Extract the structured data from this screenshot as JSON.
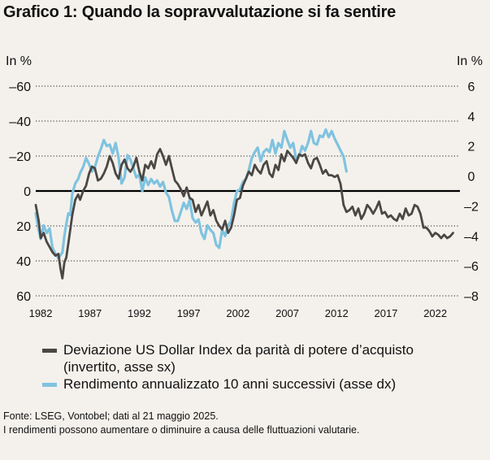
{
  "title": "Grafico 1: Quando la sopravvalutazione si fa sentire",
  "chart_data": {
    "type": "line",
    "left_axis": {
      "unit_label": "In %",
      "ticks": [
        -60,
        -40,
        -20,
        0,
        20,
        40,
        60
      ],
      "tick_labels": [
        "–60",
        "–40",
        "–20",
        "0",
        "20",
        "40",
        "60"
      ],
      "range": [
        60,
        -60
      ],
      "inverted": true
    },
    "right_axis": {
      "unit_label": "In %",
      "ticks": [
        6,
        4,
        2,
        0,
        -2,
        -4,
        -6,
        -8
      ],
      "tick_labels": [
        "6",
        "4",
        "2",
        "0",
        "–2",
        "–4",
        "–6",
        "–8"
      ],
      "range": [
        -8,
        6
      ]
    },
    "x_axis": {
      "ticks": [
        1982,
        1987,
        1992,
        1997,
        2002,
        2007,
        2012,
        2017,
        2022
      ],
      "range": [
        1981.5,
        2024.5
      ]
    },
    "grid": "dotted horizontal",
    "series": [
      {
        "name": "Deviazione US Dollar Index da parità di potere d’acquisto (invertito, asse sx)",
        "axis": "left",
        "color": "#4a4744",
        "x": [
          1981.5,
          1981.8,
          1982.0,
          1982.3,
          1982.6,
          1982.9,
          1983.2,
          1983.5,
          1983.8,
          1984.0,
          1984.2,
          1984.4,
          1984.6,
          1984.8,
          1985.0,
          1985.2,
          1985.5,
          1985.8,
          1986.0,
          1986.3,
          1986.6,
          1986.9,
          1987.2,
          1987.5,
          1987.8,
          1988.1,
          1988.4,
          1988.7,
          1989.0,
          1989.3,
          1989.6,
          1989.9,
          1990.2,
          1990.5,
          1990.8,
          1991.1,
          1991.4,
          1991.7,
          1992.0,
          1992.3,
          1992.6,
          1992.9,
          1993.2,
          1993.5,
          1993.8,
          1994.1,
          1994.4,
          1994.7,
          1995.0,
          1995.3,
          1995.6,
          1995.9,
          1996.2,
          1996.5,
          1996.8,
          1997.1,
          1997.4,
          1997.7,
          1998.0,
          1998.3,
          1998.6,
          1998.9,
          1999.2,
          1999.5,
          1999.8,
          2000.1,
          2000.4,
          2000.7,
          2001.0,
          2001.3,
          2001.6,
          2001.9,
          2002.2,
          2002.5,
          2002.8,
          2003.1,
          2003.4,
          2003.7,
          2004.0,
          2004.3,
          2004.6,
          2004.9,
          2005.2,
          2005.5,
          2005.8,
          2006.1,
          2006.4,
          2006.7,
          2007.0,
          2007.3,
          2007.6,
          2007.9,
          2008.2,
          2008.5,
          2008.8,
          2009.1,
          2009.4,
          2009.7,
          2010.0,
          2010.3,
          2010.6,
          2010.9,
          2011.2,
          2011.5,
          2011.8,
          2012.1,
          2012.4,
          2012.7,
          2013.0,
          2013.3,
          2013.6,
          2013.9,
          2014.2,
          2014.5,
          2014.8,
          2015.1,
          2015.4,
          2015.7,
          2016.0,
          2016.3,
          2016.6,
          2016.9,
          2017.2,
          2017.5,
          2017.8,
          2018.1,
          2018.4,
          2018.7,
          2019.0,
          2019.3,
          2019.6,
          2019.9,
          2020.2,
          2020.5,
          2020.8,
          2021.1,
          2021.4,
          2021.7,
          2022.0,
          2022.3,
          2022.6,
          2022.9,
          2023.2,
          2023.5,
          2023.8
        ],
        "y": [
          8,
          17,
          27,
          24,
          29,
          32,
          35,
          37,
          36,
          44,
          50,
          41,
          38,
          30,
          22,
          14,
          5,
          2,
          5,
          0,
          -3,
          -10,
          -14,
          -13,
          -6,
          -7,
          -10,
          -14,
          -20,
          -16,
          -10,
          -7,
          -15,
          -18,
          -13,
          -11,
          -14,
          -19,
          -11,
          -6,
          -15,
          -13,
          -17,
          -13,
          -21,
          -24,
          -20,
          -15,
          -20,
          -13,
          -6,
          -4,
          -1,
          3,
          -2,
          4,
          5,
          12,
          8,
          14,
          10,
          6,
          14,
          11,
          17,
          20,
          22,
          17,
          24,
          21,
          14,
          5,
          4,
          -3,
          -7,
          -11,
          -9,
          -15,
          -12,
          -10,
          -15,
          -17,
          -10,
          -8,
          -15,
          -12,
          -21,
          -17,
          -23,
          -21,
          -19,
          -16,
          -21,
          -20,
          -21,
          -16,
          -13,
          -18,
          -19,
          -15,
          -10,
          -12,
          -9,
          -9,
          -8,
          -9,
          -4,
          8,
          12,
          11,
          9,
          14,
          10,
          16,
          13,
          8,
          10,
          13,
          10,
          6,
          13,
          12,
          15,
          14,
          16,
          17,
          13,
          16,
          10,
          14,
          13,
          8,
          9,
          13,
          21,
          21,
          23,
          26,
          24,
          25,
          27,
          25,
          27,
          26,
          24
        ]
      },
      {
        "name": "Rendimento annualizzato 10 anni successivi (asse dx)",
        "axis": "right",
        "color": "#7fc3e0",
        "x": [
          1981.5,
          1981.8,
          1982.0,
          1982.3,
          1982.6,
          1982.9,
          1983.2,
          1983.5,
          1983.8,
          1984.0,
          1984.2,
          1984.4,
          1984.6,
          1984.8,
          1985.0,
          1985.2,
          1985.5,
          1985.8,
          1986.0,
          1986.3,
          1986.6,
          1986.9,
          1987.2,
          1987.5,
          1987.8,
          1988.1,
          1988.4,
          1988.7,
          1989.0,
          1989.3,
          1989.6,
          1989.9,
          1990.2,
          1990.5,
          1990.8,
          1991.1,
          1991.4,
          1991.7,
          1992.0,
          1992.3,
          1992.6,
          1992.9,
          1993.2,
          1993.5,
          1993.8,
          1994.1,
          1994.4,
          1994.7,
          1995.0,
          1995.3,
          1995.6,
          1995.9,
          1996.2,
          1996.5,
          1996.8,
          1997.1,
          1997.4,
          1997.7,
          1998.0,
          1998.3,
          1998.6,
          1998.9,
          1999.2,
          1999.5,
          1999.8,
          2000.1,
          2000.4,
          2000.7,
          2001.0,
          2001.3,
          2001.6,
          2001.9,
          2002.2,
          2002.5,
          2002.8,
          2003.1,
          2003.4,
          2003.7,
          2004.0,
          2004.3,
          2004.6,
          2004.9,
          2005.2,
          2005.5,
          2005.8,
          2006.1,
          2006.4,
          2006.7,
          2007.0,
          2007.3,
          2007.6,
          2007.9,
          2008.2,
          2008.5,
          2008.8,
          2009.1,
          2009.4,
          2009.7,
          2010.0,
          2010.3,
          2010.6,
          2010.9,
          2011.2,
          2011.5,
          2011.8,
          2012.1,
          2012.4,
          2012.7,
          2013.0
        ],
        "y": [
          -2.5,
          -3.6,
          -4.2,
          -3.3,
          -3.8,
          -3.5,
          -4.8,
          -5.2,
          -5.5,
          -5.3,
          -5.1,
          -4.0,
          -3.2,
          -2.5,
          -2.6,
          -1.2,
          -0.5,
          -0.2,
          0.2,
          0.6,
          1.2,
          0.8,
          0.3,
          0.6,
          1.3,
          1.8,
          2.4,
          2.0,
          2.1,
          1.5,
          2.2,
          1.2,
          -0.5,
          -0.1,
          1.4,
          1.1,
          0.5,
          -0.1,
          0.1,
          -1.0,
          -0.1,
          -0.6,
          -0.2,
          -0.5,
          -0.3,
          -0.7,
          -0.4,
          -1.1,
          -1.4,
          -2.3,
          -3.0,
          -3.0,
          -2.4,
          -1.8,
          -2.2,
          -1.6,
          -2.8,
          -3.1,
          -2.9,
          -3.8,
          -4.2,
          -3.3,
          -3.6,
          -3.8,
          -4.6,
          -4.8,
          -3.6,
          -4.0,
          -3.3,
          -3.0,
          -1.8,
          -1.0,
          -0.9,
          -0.4,
          -0.2,
          0.4,
          1.2,
          1.6,
          1.9,
          1.0,
          1.6,
          1.8,
          1.6,
          2.4,
          1.5,
          2.2,
          1.9,
          3.0,
          2.4,
          1.9,
          2.2,
          1.1,
          1.3,
          2.0,
          1.7,
          2.2,
          3.0,
          2.2,
          2.1,
          2.7,
          2.6,
          3.1,
          2.6,
          3.0,
          2.5,
          2.1,
          1.7,
          1.3,
          0.3
        ]
      }
    ]
  },
  "legend": {
    "dark_label_line1": "Deviazione US Dollar Index da parità di potere d’acquisto",
    "dark_label_line2": "(invertito, asse sx)",
    "light_label": "Rendimento annualizzato 10 anni successivi (asse dx)"
  },
  "footer": {
    "source": "Fonte: LSEG, Vontobel; dati al 21 maggio 2025.",
    "disclaimer": "I rendimenti possono aumentare o diminuire a causa delle fluttuazioni valutarie."
  },
  "colors": {
    "background": "#f4f1ec",
    "dark_series": "#4a4744",
    "light_series": "#7fc3e0",
    "zero_line": "#000000"
  }
}
